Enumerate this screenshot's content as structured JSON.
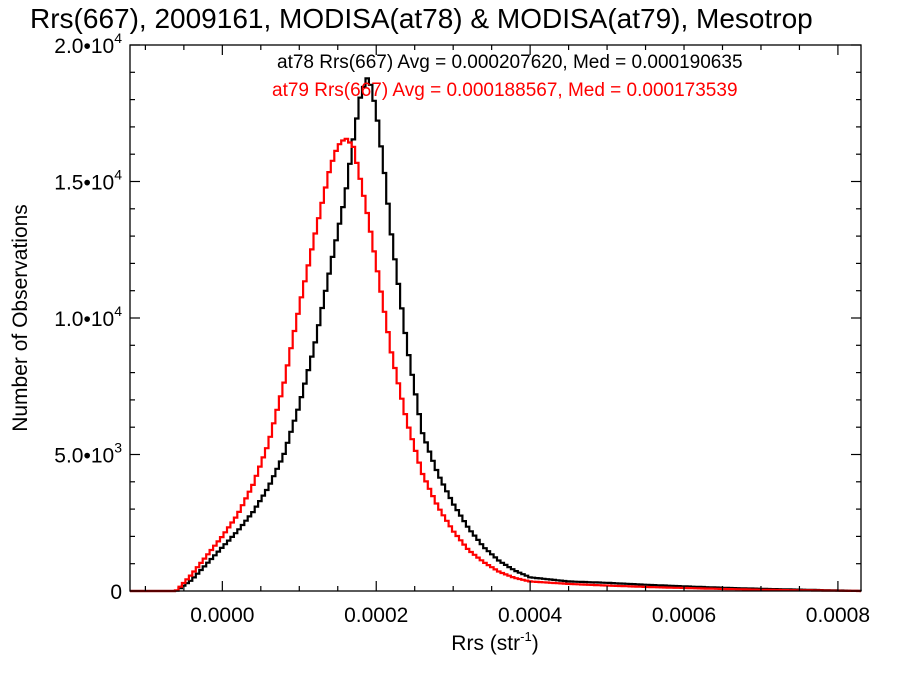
{
  "chart_data": {
    "type": "histogram-step",
    "title": "Rrs(667), 2009161, MODISA(at78) & MODISA(at79), Mesotrop",
    "xlabel_base": "Rrs (str",
    "xlabel_sup": "-1",
    "xlabel_close": ")",
    "ylabel": "Number of Observations",
    "xlim": [
      -0.00012,
      0.00083
    ],
    "ylim": [
      0,
      20000
    ],
    "grid": false,
    "legend_position": "top-right",
    "x_ticks": [
      {
        "value": 0.0,
        "label": "0.0000"
      },
      {
        "value": 0.0002,
        "label": "0.0002"
      },
      {
        "value": 0.0004,
        "label": "0.0004"
      },
      {
        "value": 0.0006,
        "label": "0.0006"
      },
      {
        "value": 0.0008,
        "label": "0.0008"
      }
    ],
    "y_ticks": [
      {
        "value": 0,
        "mantissa": "0",
        "exp": ""
      },
      {
        "value": 5000,
        "mantissa": "5.0•10",
        "exp": "3"
      },
      {
        "value": 10000,
        "mantissa": "1.0•10",
        "exp": "4"
      },
      {
        "value": 15000,
        "mantissa": "1.5•10",
        "exp": "4"
      },
      {
        "value": 20000,
        "mantissa": "2.0•10",
        "exp": "4"
      }
    ],
    "series": [
      {
        "name": "at78",
        "legend": "at78 Rrs(667) Avg = 0.000207620, Med = 0.000190635",
        "color": "#000000",
        "x": [
          -0.00012,
          -6e-05,
          -4e-05,
          -2e-05,
          0.0,
          2e-05,
          4e-05,
          6e-05,
          8e-05,
          0.0001,
          0.00012,
          0.00014,
          0.00016,
          0.00017,
          0.00018,
          0.00019,
          0.0002,
          0.00021,
          0.00022,
          0.00024,
          0.00026,
          0.00028,
          0.0003,
          0.00032,
          0.00034,
          0.00036,
          0.00038,
          0.0004,
          0.00045,
          0.0005,
          0.00055,
          0.0006,
          0.00065,
          0.0007,
          0.00075,
          0.0008,
          0.00083
        ],
        "y": [
          0,
          0,
          400,
          1000,
          1600,
          2200,
          2900,
          3800,
          5000,
          6800,
          9000,
          11800,
          14500,
          16500,
          18200,
          18900,
          17600,
          15500,
          13000,
          9000,
          5800,
          4300,
          3200,
          2300,
          1600,
          1100,
          750,
          500,
          350,
          300,
          230,
          170,
          120,
          80,
          50,
          20,
          0
        ]
      },
      {
        "name": "at79",
        "legend": "at79 Rrs(667) Avg = 0.000188567, Med = 0.000173539",
        "color": "#ff0000",
        "x": [
          -0.00012,
          -6e-05,
          -4e-05,
          -2e-05,
          0.0,
          2e-05,
          4e-05,
          6e-05,
          8e-05,
          0.0001,
          0.00012,
          0.00014,
          0.00015,
          0.00016,
          0.00017,
          0.00018,
          0.00019,
          0.0002,
          0.00022,
          0.00024,
          0.00026,
          0.00028,
          0.0003,
          0.00032,
          0.00034,
          0.00036,
          0.00038,
          0.0004,
          0.00045,
          0.0005,
          0.00055,
          0.0006,
          0.00065,
          0.0007,
          0.00075,
          0.0008,
          0.00083
        ],
        "y": [
          0,
          0,
          600,
          1300,
          2000,
          2800,
          3900,
          5400,
          7600,
          10400,
          13000,
          15500,
          16300,
          16600,
          16300,
          15000,
          13600,
          12000,
          8700,
          6200,
          4300,
          3100,
          2200,
          1500,
          1050,
          700,
          480,
          350,
          260,
          200,
          150,
          110,
          75,
          45,
          25,
          10,
          0
        ]
      }
    ]
  }
}
